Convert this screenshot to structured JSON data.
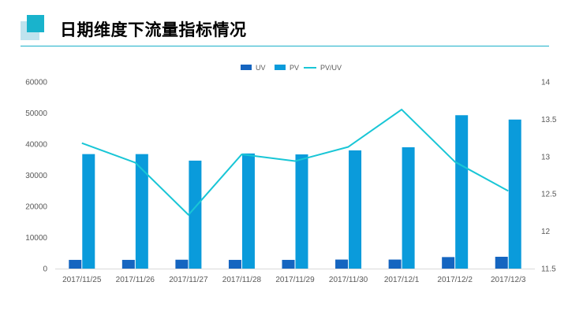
{
  "header": {
    "title": "日期维度下流量指标情况"
  },
  "colors": {
    "accent": "#19b3cc",
    "accent_light": "#bfe3ee",
    "uv": "#1565c0",
    "pv": "#0a9bdb",
    "ratio": "#19c6d6"
  },
  "chart_data": {
    "type": "bar",
    "categories": [
      "2017/11/25",
      "2017/11/26",
      "2017/11/27",
      "2017/11/28",
      "2017/11/29",
      "2017/11/30",
      "2017/12/1",
      "2017/12/2",
      "2017/12/3"
    ],
    "series": [
      {
        "name": "UV",
        "type": "bar",
        "axis": "left",
        "values": [
          2800,
          2800,
          2850,
          2800,
          2800,
          2900,
          2900,
          3700,
          3800
        ]
      },
      {
        "name": "PV",
        "type": "bar",
        "axis": "left",
        "values": [
          36800,
          36800,
          34700,
          37000,
          36700,
          38000,
          39000,
          49300,
          47900
        ]
      },
      {
        "name": "PV/UV",
        "type": "line",
        "axis": "right",
        "values": [
          13.18,
          12.92,
          12.22,
          13.03,
          12.94,
          13.13,
          13.63,
          12.93,
          12.54
        ]
      }
    ],
    "y_left": {
      "min": 0,
      "max": 60000,
      "ticks": [
        "0",
        "10000",
        "20000",
        "30000",
        "40000",
        "50000",
        "60000"
      ]
    },
    "y_right": {
      "min": 11.5,
      "max": 14,
      "ticks": [
        "11.5",
        "12",
        "12.5",
        "13",
        "13.5",
        "14"
      ]
    },
    "legend": {
      "position": "top-center",
      "items": [
        "UV",
        "PV",
        "PV/UV"
      ]
    },
    "grid": false
  }
}
